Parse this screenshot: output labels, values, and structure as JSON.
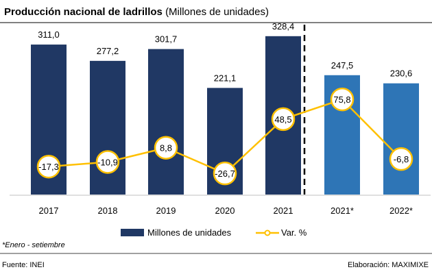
{
  "chart_data": {
    "type": "bar",
    "title": "Producción nacional de ladrillos",
    "subtitle": "(Millones de unidades)",
    "categories": [
      "2017",
      "2018",
      "2019",
      "2020",
      "2021",
      "2021*",
      "2022*"
    ],
    "series": [
      {
        "name": "Millones de unidades",
        "type": "bar",
        "values": [
          311.0,
          277.2,
          301.7,
          221.1,
          328.4,
          247.5,
          230.6
        ],
        "labels": [
          "311,0",
          "277,2",
          "301,7",
          "221,1",
          "328,4",
          "247,5",
          "230,6"
        ]
      },
      {
        "name": "Var. %",
        "type": "line",
        "values": [
          -17.3,
          -10.9,
          8.8,
          -26.7,
          48.5,
          75.8,
          -6.8
        ],
        "labels": [
          "-17,3",
          "-10,9",
          "8,8",
          "-26,7",
          "48,5",
          "75,8",
          "-6,8"
        ]
      }
    ],
    "legend_position": "bottom",
    "grid": false,
    "note": "*Enero - setiembre",
    "source": "Fuente: INEI",
    "credit": "Elaboración: MAXIMIXE",
    "colors": {
      "bar_annual": "#203864",
      "bar_partial": "#2e75b6",
      "line": "#ffc000"
    }
  }
}
